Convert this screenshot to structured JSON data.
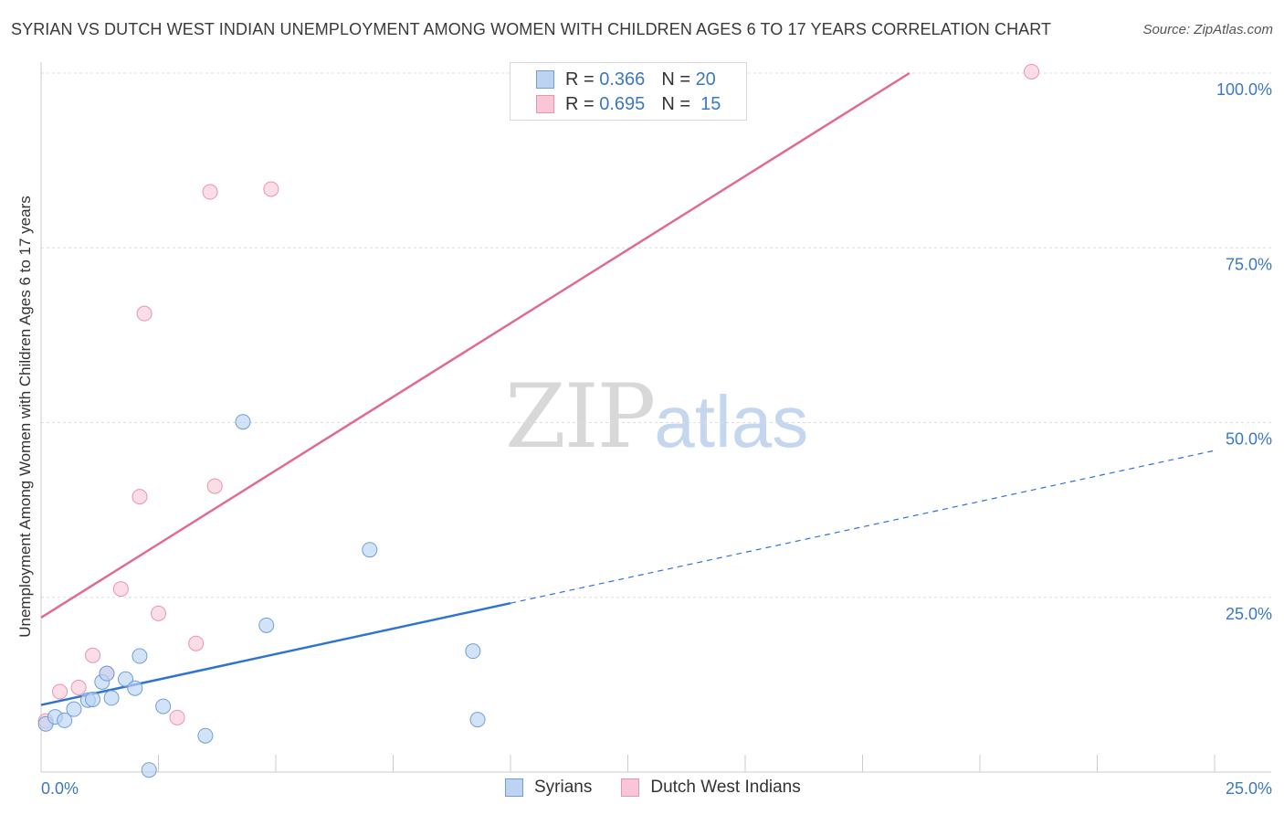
{
  "title": "SYRIAN VS DUTCH WEST INDIAN UNEMPLOYMENT AMONG WOMEN WITH CHILDREN AGES 6 TO 17 YEARS CORRELATION CHART",
  "source": "Source: ZipAtlas.com",
  "watermark": {
    "zip": "ZIP",
    "atlas": "atlas"
  },
  "legend_top": {
    "syrians": {
      "r_label": "R =",
      "r_value": "0.366",
      "n_label": "N =",
      "n_value": "20"
    },
    "dutch": {
      "r_label": "R =",
      "r_value": "0.695",
      "n_label": "N =",
      "n_value": "15"
    }
  },
  "legend_bottom": {
    "syrians": "Syrians",
    "dutch": "Dutch West Indians"
  },
  "colors": {
    "syrians_fill": "#bcd4f2",
    "syrians_stroke": "#6f9fd8",
    "syrians_line": "#2f74d0",
    "dutch_fill": "#f8c6d6",
    "dutch_stroke": "#e994b0",
    "dutch_line": "#e06a93",
    "tick_label": "#3b78c3",
    "grid": "#dddddd"
  },
  "chart_data": {
    "type": "scatter",
    "title": "SYRIAN VS DUTCH WEST INDIAN UNEMPLOYMENT AMONG WOMEN WITH CHILDREN AGES 6 TO 17 YEARS CORRELATION CHART",
    "xlabel": "",
    "ylabel": "Unemployment Among Women with Children Ages 6 to 17 years",
    "xlim": [
      0,
      25
    ],
    "ylim": [
      0,
      100
    ],
    "x_tick_labels": [
      "0.0%",
      "25.0%"
    ],
    "y_ticks": [
      25,
      50,
      75,
      100
    ],
    "y_tick_labels": [
      "25.0%",
      "50.0%",
      "75.0%",
      "100.0%"
    ],
    "grid": true,
    "series": [
      {
        "name": "Syrians",
        "R": 0.366,
        "N": 20,
        "points": [
          [
            0.1,
            6.9
          ],
          [
            0.3,
            7.9
          ],
          [
            0.5,
            7.4
          ],
          [
            0.7,
            9.0
          ],
          [
            1.0,
            10.3
          ],
          [
            1.1,
            10.4
          ],
          [
            1.3,
            12.9
          ],
          [
            1.4,
            14.1
          ],
          [
            1.5,
            10.6
          ],
          [
            1.8,
            13.3
          ],
          [
            2.0,
            12.0
          ],
          [
            2.1,
            16.6
          ],
          [
            2.3,
            0.3
          ],
          [
            2.6,
            9.4
          ],
          [
            3.5,
            5.2
          ],
          [
            4.3,
            50.1
          ],
          [
            4.8,
            21.0
          ],
          [
            7.0,
            31.8
          ],
          [
            9.2,
            17.3
          ],
          [
            9.3,
            7.5
          ]
        ],
        "trend": {
          "x0": 0,
          "y0": 9.6,
          "x_solid_end": 10,
          "x1": 25,
          "y1": 46.0
        }
      },
      {
        "name": "Dutch West Indians",
        "R": 0.695,
        "N": 15,
        "points": [
          [
            0.1,
            7.3
          ],
          [
            0.4,
            11.5
          ],
          [
            0.8,
            12.1
          ],
          [
            1.1,
            16.7
          ],
          [
            1.4,
            14.1
          ],
          [
            1.7,
            26.2
          ],
          [
            2.1,
            39.4
          ],
          [
            2.2,
            65.6
          ],
          [
            2.5,
            22.7
          ],
          [
            2.9,
            7.8
          ],
          [
            3.3,
            18.4
          ],
          [
            3.6,
            83.0
          ],
          [
            3.7,
            40.9
          ],
          [
            4.9,
            83.4
          ],
          [
            21.1,
            100.2
          ]
        ],
        "trend": {
          "x0": 0,
          "y0": 22.1,
          "x1": 18.5,
          "y1": 100.0
        }
      }
    ]
  }
}
